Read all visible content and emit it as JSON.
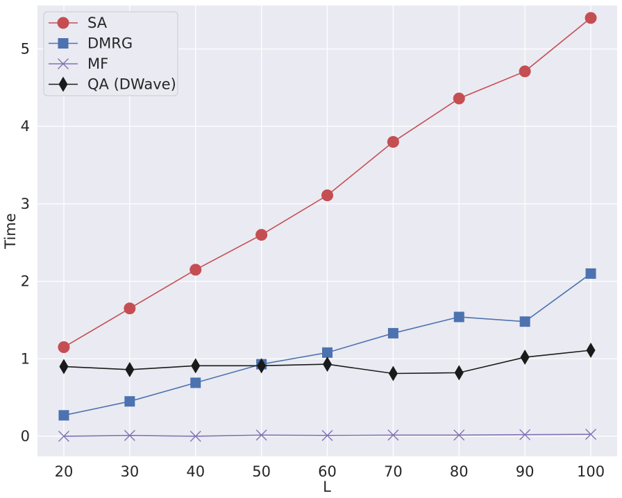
{
  "chart_data": {
    "type": "line",
    "title": "",
    "xlabel": "L",
    "ylabel": "Time",
    "x": [
      20,
      30,
      40,
      50,
      60,
      70,
      80,
      90,
      100
    ],
    "xticks": [
      "20",
      "30",
      "40",
      "50",
      "60",
      "70",
      "80",
      "90",
      "100"
    ],
    "yticks": [
      "0",
      "1",
      "2",
      "3",
      "4",
      "5"
    ],
    "xlim": [
      16,
      104
    ],
    "ylim": [
      -0.26,
      5.56
    ],
    "grid": true,
    "legend_position": "top-left",
    "colors": {
      "background": "#eaeaf2",
      "grid": "#ffffff",
      "text": "#262626"
    },
    "series": [
      {
        "name": "SA",
        "color": "#c44e52",
        "marker": "circle",
        "values": [
          1.15,
          1.65,
          2.15,
          2.6,
          3.11,
          3.8,
          4.36,
          4.71,
          5.4
        ]
      },
      {
        "name": "DMRG",
        "color": "#4c72b0",
        "marker": "square",
        "values": [
          0.27,
          0.45,
          0.69,
          0.93,
          1.08,
          1.33,
          1.54,
          1.48,
          2.1
        ]
      },
      {
        "name": "MF",
        "color": "#8172b2",
        "marker": "x",
        "values": [
          0.0,
          0.01,
          0.0,
          0.015,
          0.01,
          0.015,
          0.015,
          0.02,
          0.025
        ]
      },
      {
        "name": "QA (DWave)",
        "color": "#1a1a1a",
        "marker": "thin_diamond",
        "values": [
          0.9,
          0.86,
          0.91,
          0.91,
          0.93,
          0.81,
          0.82,
          1.02,
          1.11
        ]
      }
    ]
  }
}
